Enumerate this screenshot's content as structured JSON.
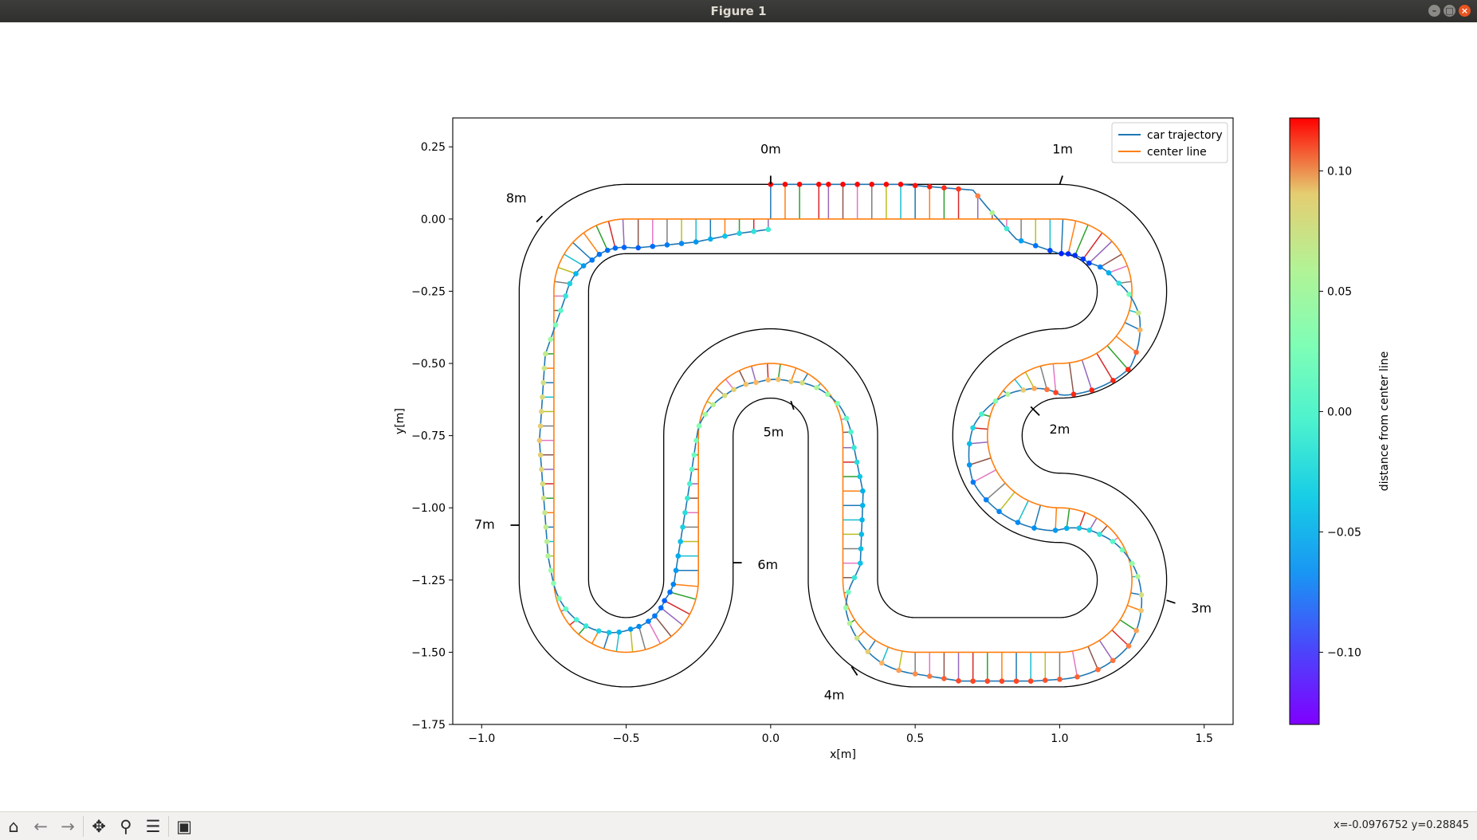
{
  "window": {
    "title": "Figure 1",
    "buttons": [
      "minimize-icon",
      "maximize-icon",
      "close-icon"
    ]
  },
  "toolbar": {
    "items": [
      "home-icon",
      "back-arrow-icon",
      "forward-arrow-icon",
      "pan-icon",
      "zoom-icon",
      "configure-subplots-icon",
      "save-icon"
    ],
    "coords_text": "x=-0.0976752  y=0.28845"
  },
  "chart_data": {
    "type": "line",
    "xlabel": "x[m]",
    "ylabel": "y[m]",
    "xlim": [
      -1.1,
      1.6
    ],
    "ylim": [
      -1.75,
      0.35
    ],
    "xticks": [
      -1.0,
      -0.5,
      0.0,
      0.5,
      1.0,
      1.5
    ],
    "xtick_labels": [
      "−1.0",
      "−0.5",
      "0.0",
      "0.5",
      "1.0",
      "1.5"
    ],
    "yticks": [
      0.25,
      0.0,
      -0.25,
      -0.5,
      -0.75,
      -1.0,
      -1.25,
      -1.5,
      -1.75
    ],
    "ytick_labels": [
      "0.25",
      "0.00",
      "−0.25",
      "−0.50",
      "−0.75",
      "−1.00",
      "−1.25",
      "−1.50",
      "−1.75"
    ],
    "grid": false,
    "legend": {
      "placement": "top-right",
      "entries": [
        {
          "label": "car trajectory",
          "color": "#1f77b4"
        },
        {
          "label": "center line",
          "color": "#ff7f0e"
        }
      ]
    },
    "track_half_width": 0.12,
    "center_line": {
      "segments": [
        {
          "type": "line",
          "from": [
            0.0,
            0.0
          ],
          "to": [
            1.0,
            0.0
          ]
        },
        {
          "type": "arc",
          "center": [
            1.0,
            -0.25
          ],
          "radius": 0.25,
          "start_deg": 90,
          "end_deg": -90
        },
        {
          "type": "arc",
          "center": [
            1.0,
            -0.75
          ],
          "radius": 0.25,
          "start_deg": 90,
          "end_deg": 270
        },
        {
          "type": "arc",
          "center": [
            1.0,
            -1.25
          ],
          "radius": 0.25,
          "start_deg": 90,
          "end_deg": -90
        },
        {
          "type": "line",
          "from": [
            1.0,
            -1.5
          ],
          "to": [
            0.5,
            -1.5
          ]
        },
        {
          "type": "arc",
          "center": [
            0.5,
            -1.25
          ],
          "radius": 0.25,
          "start_deg": 270,
          "end_deg": 180
        },
        {
          "type": "line",
          "from": [
            0.25,
            -1.25
          ],
          "to": [
            0.25,
            -0.75
          ]
        },
        {
          "type": "arc",
          "center": [
            0.0,
            -0.75
          ],
          "radius": 0.25,
          "start_deg": 0,
          "end_deg": 180
        },
        {
          "type": "line",
          "from": [
            -0.25,
            -0.75
          ],
          "to": [
            -0.25,
            -1.25
          ]
        },
        {
          "type": "arc",
          "center": [
            -0.5,
            -1.25
          ],
          "radius": 0.25,
          "start_deg": 0,
          "end_deg": -180
        },
        {
          "type": "line",
          "from": [
            -0.75,
            -1.25
          ],
          "to": [
            -0.75,
            -0.25
          ]
        },
        {
          "type": "arc",
          "center": [
            -0.5,
            -0.25
          ],
          "radius": 0.25,
          "start_deg": 180,
          "end_deg": 90
        },
        {
          "type": "line",
          "from": [
            -0.5,
            0.0
          ],
          "to": [
            0.0,
            0.0
          ]
        }
      ]
    },
    "distance_labels": [
      {
        "label": "0m",
        "pos": [
          0.0,
          0.24
        ]
      },
      {
        "label": "1m",
        "pos": [
          1.01,
          0.24
        ]
      },
      {
        "label": "2m",
        "pos": [
          1.0,
          -0.73
        ]
      },
      {
        "label": "3m",
        "pos": [
          1.49,
          -1.35
        ]
      },
      {
        "label": "4m",
        "pos": [
          0.22,
          -1.65
        ]
      },
      {
        "label": "5m",
        "pos": [
          0.01,
          -0.74
        ]
      },
      {
        "label": "6m",
        "pos": [
          -0.01,
          -1.2
        ]
      },
      {
        "label": "7m",
        "pos": [
          -0.99,
          -1.06
        ]
      },
      {
        "label": "8m",
        "pos": [
          -0.88,
          0.07
        ]
      }
    ],
    "distance_ticks": [
      {
        "label": "0m",
        "from": [
          0.0,
          0.15
        ],
        "to": [
          0.0,
          0.12
        ]
      },
      {
        "label": "1m",
        "from": [
          1.01,
          0.15
        ],
        "to": [
          1.0,
          0.12
        ]
      },
      {
        "label": "2m",
        "from": [
          0.9,
          -0.65
        ],
        "to": [
          0.93,
          -0.68
        ]
      },
      {
        "label": "3m",
        "from": [
          1.37,
          -1.32
        ],
        "to": [
          1.4,
          -1.33
        ]
      },
      {
        "label": "4m",
        "from": [
          0.28,
          -1.55
        ],
        "to": [
          0.3,
          -1.58
        ]
      },
      {
        "label": "5m",
        "from": [
          0.07,
          -0.63
        ],
        "to": [
          0.08,
          -0.66
        ]
      },
      {
        "label": "6m",
        "from": [
          -0.13,
          -1.19
        ],
        "to": [
          -0.1,
          -1.19
        ]
      },
      {
        "label": "7m",
        "from": [
          -0.9,
          -1.06
        ],
        "to": [
          -0.87,
          -1.06
        ]
      },
      {
        "label": "8m",
        "from": [
          -0.81,
          -0.01
        ],
        "to": [
          -0.79,
          0.01
        ]
      }
    ],
    "colorbar": {
      "label": "distance from center line",
      "range": [
        -0.13,
        0.122
      ],
      "ticks": [
        0.1,
        0.05,
        0.0,
        -0.05,
        -0.1
      ],
      "tick_labels": [
        "0.10",
        "0.05",
        "0.00",
        "−0.05",
        "−0.10"
      ],
      "colormap": "rainbow"
    },
    "trajectory_offset_profile": [
      [
        0.0,
        0.12
      ],
      [
        0.45,
        0.12
      ],
      [
        0.7,
        0.1
      ],
      [
        0.75,
        0.04
      ],
      [
        0.85,
        -0.07
      ],
      [
        1.0,
        -0.12
      ],
      [
        1.2,
        -0.11
      ],
      [
        1.35,
        -0.05
      ],
      [
        1.47,
        0.04
      ],
      [
        1.6,
        0.11
      ],
      [
        1.78,
        0.11
      ],
      [
        1.95,
        0.05
      ],
      [
        2.15,
        -0.05
      ],
      [
        2.3,
        -0.09
      ],
      [
        2.55,
        -0.08
      ],
      [
        2.75,
        -0.04
      ],
      [
        2.95,
        0.02
      ],
      [
        3.15,
        0.08
      ],
      [
        3.45,
        0.1
      ],
      [
        3.7,
        0.1
      ],
      [
        3.95,
        0.06
      ],
      [
        4.15,
        0.01
      ],
      [
        4.3,
        -0.06
      ],
      [
        4.55,
        -0.07
      ],
      [
        4.85,
        -0.01
      ],
      [
        5.05,
        0.05
      ],
      [
        5.2,
        0.06
      ],
      [
        5.35,
        0.04
      ],
      [
        5.5,
        0.0
      ],
      [
        5.7,
        -0.03
      ],
      [
        5.95,
        -0.07
      ],
      [
        6.15,
        -0.1
      ],
      [
        6.4,
        -0.08
      ],
      [
        6.6,
        -0.04
      ],
      [
        6.9,
        0.02
      ],
      [
        7.3,
        0.05
      ],
      [
        7.6,
        0.03
      ],
      [
        7.8,
        -0.04
      ],
      [
        8.0,
        -0.09
      ],
      [
        8.25,
        -0.1
      ],
      [
        8.45,
        -0.08
      ],
      [
        8.6,
        -0.05
      ],
      [
        8.75,
        -0.03
      ],
      [
        8.9,
        -0.02
      ],
      [
        9.05,
        0.05
      ],
      [
        9.1,
        0.12
      ]
    ]
  }
}
